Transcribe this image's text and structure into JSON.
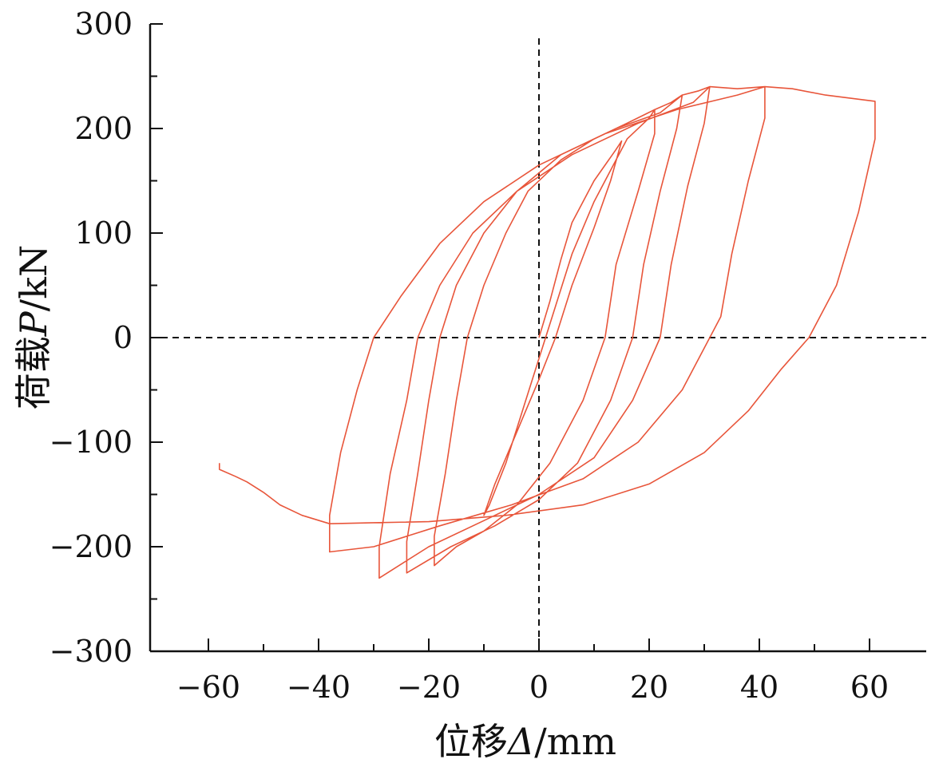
{
  "chart_data": {
    "type": "line",
    "title": "",
    "xlabel_prefix": "位移",
    "xlabel_symbol": "Δ",
    "xlabel_unit": "/mm",
    "ylabel_prefix": "荷载",
    "ylabel_symbol": "P",
    "ylabel_unit": "/kN",
    "xlim": [
      -70,
      70
    ],
    "ylim": [
      -300,
      300
    ],
    "xticks": [
      -60,
      -40,
      -20,
      0,
      20,
      40,
      60
    ],
    "yticks": [
      -300,
      -200,
      -100,
      0,
      100,
      200,
      300
    ],
    "xtick_labels": [
      "−60",
      "−40",
      "−20",
      "0",
      "20",
      "40",
      "60"
    ],
    "ytick_labels": [
      "−300",
      "−200",
      "−100",
      "0",
      "100",
      "200",
      "300"
    ],
    "grid": false,
    "reference_lines": {
      "x": 0,
      "y": 0,
      "style": "dashed"
    },
    "line_color": "#e8553a",
    "series": [
      {
        "values": [
          [
            0,
            0
          ],
          [
            2,
            35
          ],
          [
            4,
            75
          ],
          [
            6,
            110
          ],
          [
            10,
            150
          ],
          [
            14,
            180
          ],
          [
            15,
            188
          ],
          [
            13,
            150
          ],
          [
            10,
            105
          ],
          [
            6,
            50
          ],
          [
            3,
            0
          ],
          [
            0,
            -40
          ],
          [
            -4,
            -90
          ],
          [
            -8,
            -140
          ],
          [
            -10,
            -170
          ],
          [
            -9,
            -160
          ],
          [
            -6,
            -120
          ],
          [
            -3,
            -70
          ],
          [
            0,
            -20
          ],
          [
            3,
            30
          ],
          [
            6,
            80
          ],
          [
            10,
            130
          ],
          [
            14,
            170
          ],
          [
            16,
            190
          ],
          [
            20,
            210
          ],
          [
            21,
            218
          ],
          [
            21,
            195
          ],
          [
            18,
            140
          ],
          [
            14,
            70
          ],
          [
            12,
            0
          ],
          [
            8,
            -60
          ],
          [
            2,
            -120
          ],
          [
            -4,
            -160
          ],
          [
            -10,
            -185
          ],
          [
            -15,
            -200
          ],
          [
            -19,
            -218
          ],
          [
            -19,
            -190
          ],
          [
            -17,
            -130
          ],
          [
            -15,
            -60
          ],
          [
            -13,
            0
          ],
          [
            -10,
            50
          ],
          [
            -6,
            100
          ],
          [
            -2,
            140
          ],
          [
            4,
            170
          ],
          [
            10,
            190
          ],
          [
            16,
            205
          ],
          [
            21,
            218
          ],
          [
            24,
            225
          ],
          [
            26,
            232
          ],
          [
            25,
            200
          ],
          [
            22,
            140
          ],
          [
            19,
            70
          ],
          [
            17,
            0
          ],
          [
            13,
            -60
          ],
          [
            7,
            -120
          ],
          [
            0,
            -155
          ],
          [
            -8,
            -180
          ],
          [
            -16,
            -200
          ],
          [
            -24,
            -225
          ],
          [
            -24,
            -195
          ],
          [
            -22,
            -130
          ],
          [
            -20,
            -60
          ],
          [
            -18,
            0
          ],
          [
            -15,
            50
          ],
          [
            -10,
            100
          ],
          [
            -4,
            140
          ],
          [
            4,
            175
          ],
          [
            14,
            200
          ],
          [
            22,
            215
          ],
          [
            26,
            232
          ],
          [
            29,
            236
          ],
          [
            31,
            240
          ],
          [
            30,
            205
          ],
          [
            27,
            145
          ],
          [
            24,
            70
          ],
          [
            22,
            0
          ],
          [
            17,
            -60
          ],
          [
            10,
            -115
          ],
          [
            0,
            -150
          ],
          [
            -10,
            -175
          ],
          [
            -20,
            -200
          ],
          [
            -29,
            -230
          ],
          [
            -29,
            -200
          ],
          [
            -27,
            -130
          ],
          [
            -24,
            -60
          ],
          [
            -22,
            0
          ],
          [
            -18,
            50
          ],
          [
            -12,
            100
          ],
          [
            -4,
            140
          ],
          [
            6,
            175
          ],
          [
            18,
            205
          ],
          [
            28,
            225
          ],
          [
            31,
            240
          ],
          [
            36,
            238
          ],
          [
            41,
            240
          ],
          [
            41,
            210
          ],
          [
            38,
            150
          ],
          [
            35,
            80
          ],
          [
            33,
            20
          ],
          [
            31,
            0
          ],
          [
            26,
            -50
          ],
          [
            18,
            -100
          ],
          [
            8,
            -135
          ],
          [
            -5,
            -160
          ],
          [
            -18,
            -180
          ],
          [
            -30,
            -200
          ],
          [
            -38,
            -205
          ],
          [
            -38,
            -170
          ],
          [
            -36,
            -110
          ],
          [
            -33,
            -50
          ],
          [
            -30,
            0
          ],
          [
            -25,
            40
          ],
          [
            -18,
            90
          ],
          [
            -10,
            130
          ],
          [
            0,
            165
          ],
          [
            12,
            195
          ],
          [
            25,
            218
          ],
          [
            36,
            232
          ],
          [
            41,
            240
          ],
          [
            46,
            238
          ],
          [
            52,
            232
          ],
          [
            58,
            228
          ],
          [
            61,
            226
          ],
          [
            61,
            190
          ],
          [
            58,
            120
          ],
          [
            54,
            50
          ],
          [
            49,
            0
          ],
          [
            44,
            -30
          ],
          [
            38,
            -70
          ],
          [
            30,
            -110
          ],
          [
            20,
            -140
          ],
          [
            8,
            -160
          ],
          [
            -6,
            -170
          ],
          [
            -20,
            -176
          ],
          [
            -30,
            -177
          ],
          [
            -38,
            -178
          ],
          [
            -43,
            -170
          ],
          [
            -47,
            -160
          ],
          [
            -50,
            -148
          ],
          [
            -53,
            -138
          ],
          [
            -55,
            -133
          ],
          [
            -58,
            -126
          ],
          [
            -58,
            -120
          ]
        ]
      }
    ]
  }
}
